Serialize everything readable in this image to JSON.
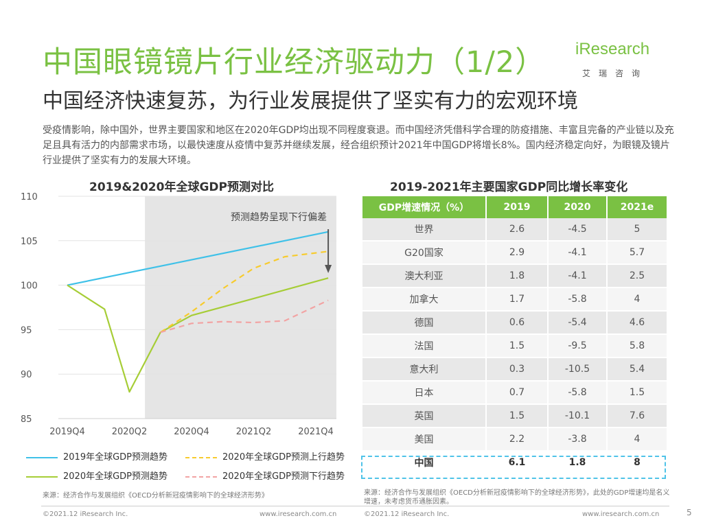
{
  "header": {
    "title": "中国眼镜镜片行业经济驱动力（1/2）",
    "subtitle": "中国经济快速复苏，为行业发展提供了坚实有力的宏观环境",
    "logo_brand": "iResearch",
    "logo_cn": "艾瑞咨询"
  },
  "intro": "受疫情影响，除中国外，世界主要国家和地区在2020年GDP均出现不同程度衰退。而中国经济凭借科学合理的防疫措施、丰富且完备的产业链以及充足且具有活力的内部需求市场，以最快速度从疫情中复苏并继续发展，经合组织预计2021年中国GDP将增长8%。国内经济稳定向好，为眼镜及镜片行业提供了坚实有力的发展大环境。",
  "left_section": {
    "title": "2019&2020年全球GDP预测对比",
    "source": "来源：经济合作与发展组织《OECD分析新冠疫情影响下的全球经济形势》"
  },
  "right_section": {
    "title": "2019-2021年主要国家GDP同比增长率变化",
    "source": "来源：经济合作与发展组织《OECD分析新冠疫情影响下的全球经济形势》，此处的GDP增速均是名义增速，未考虑货币通胀因素。"
  },
  "chart_data": {
    "type": "line",
    "title": "2019&2020年全球GDP预测对比",
    "x_ticks": [
      "2019Q4",
      "2020Q2",
      "2020Q4",
      "2021Q2",
      "2021Q4"
    ],
    "y_ticks": [
      85,
      90,
      95,
      100,
      105,
      110
    ],
    "ylim": [
      85,
      110
    ],
    "xlim": [
      0,
      4.2
    ],
    "shaded_region_start_x": 1.25,
    "annotation": "预测趋势呈现下行偏差",
    "series": [
      {
        "name": "2019年全球GDP预测趋势",
        "color": "#3fc1e8",
        "style": "solid",
        "points": [
          [
            0,
            100
          ],
          [
            4.2,
            106
          ]
        ]
      },
      {
        "name": "2020年全球GDP预测趋势",
        "color": "#a6cd36",
        "style": "solid",
        "points": [
          [
            0,
            100
          ],
          [
            0.6,
            97.3
          ],
          [
            1.0,
            88.0
          ],
          [
            1.5,
            94.7
          ],
          [
            2.0,
            96.6
          ],
          [
            3.0,
            98.5
          ],
          [
            4.2,
            100.8
          ]
        ]
      },
      {
        "name": "2020年全球GDP预测上行趋势",
        "color": "#f7cb2d",
        "style": "dashed",
        "points": [
          [
            1.5,
            94.7
          ],
          [
            2.0,
            97.0
          ],
          [
            2.5,
            99.6
          ],
          [
            3.0,
            101.9
          ],
          [
            3.5,
            103.2
          ],
          [
            4.2,
            103.8
          ]
        ]
      },
      {
        "name": "2020年全球GDP预测下行趋势",
        "color": "#f2a3a3",
        "style": "dashed",
        "points": [
          [
            1.5,
            94.7
          ],
          [
            2.0,
            95.7
          ],
          [
            2.5,
            95.9
          ],
          [
            3.0,
            95.8
          ],
          [
            3.5,
            96.0
          ],
          [
            4.2,
            98.3
          ]
        ]
      }
    ]
  },
  "table": {
    "headers": [
      "GDP增速情况（%）",
      "2019",
      "2020",
      "2021e"
    ],
    "rows": [
      [
        "世界",
        "2.6",
        "-4.5",
        "5"
      ],
      [
        "G20国家",
        "2.9",
        "-4.1",
        "5.7"
      ],
      [
        "澳大利亚",
        "1.8",
        "-4.1",
        "2.5"
      ],
      [
        "加拿大",
        "1.7",
        "-5.8",
        "4"
      ],
      [
        "德国",
        "0.6",
        "-5.4",
        "4.6"
      ],
      [
        "法国",
        "1.5",
        "-9.5",
        "5.8"
      ],
      [
        "意大利",
        "0.3",
        "-10.5",
        "5.4"
      ],
      [
        "日本",
        "0.7",
        "-5.8",
        "1.5"
      ],
      [
        "英国",
        "1.5",
        "-10.1",
        "7.6"
      ],
      [
        "美国",
        "2.2",
        "-3.8",
        "4"
      ],
      [
        "中国",
        "6.1",
        "1.8",
        "8"
      ]
    ]
  },
  "footer": {
    "left_copyright": "©2021.12 iResearch Inc.",
    "left_url": "www.iresearch.com.cn",
    "right_copyright": "©2021.12 iResearch Inc.",
    "right_url": "www.iresearch.com.cn",
    "page_number": "5"
  },
  "colors": {
    "accent": "#7ac143",
    "shade": "#e5e5e5"
  }
}
